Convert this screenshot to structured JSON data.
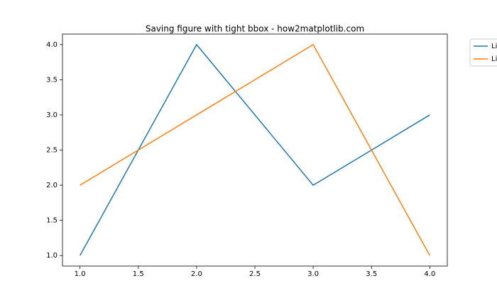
{
  "chart_data": {
    "type": "line",
    "title": "Saving figure with tight bbox - how2matplotlib.com",
    "x": [
      1,
      2,
      3,
      4
    ],
    "series": [
      {
        "name": "Li",
        "color": "#1f77b4",
        "values": [
          1,
          4,
          2,
          3
        ]
      },
      {
        "name": "Li",
        "color": "#ff7f0e",
        "values": [
          2,
          3,
          4,
          1
        ]
      }
    ],
    "xlim": [
      0.85,
      4.15
    ],
    "ylim": [
      0.85,
      4.15
    ],
    "xticks": [
      {
        "value": 1,
        "label": "1.0"
      },
      {
        "value": 1.5,
        "label": "1.5"
      },
      {
        "value": 2,
        "label": "2.0"
      },
      {
        "value": 2.5,
        "label": "2.5"
      },
      {
        "value": 3,
        "label": "3.0"
      },
      {
        "value": 3.5,
        "label": "3.5"
      },
      {
        "value": 4,
        "label": "4.0"
      }
    ],
    "yticks": [
      {
        "value": 1,
        "label": "1.0"
      },
      {
        "value": 1.5,
        "label": "1.5"
      },
      {
        "value": 2,
        "label": "2.0"
      },
      {
        "value": 2.5,
        "label": "2.5"
      },
      {
        "value": 3,
        "label": "3.0"
      },
      {
        "value": 3.5,
        "label": "3.5"
      },
      {
        "value": 4,
        "label": "4.0"
      }
    ],
    "grid": false,
    "legend": "outside-upper-right"
  }
}
